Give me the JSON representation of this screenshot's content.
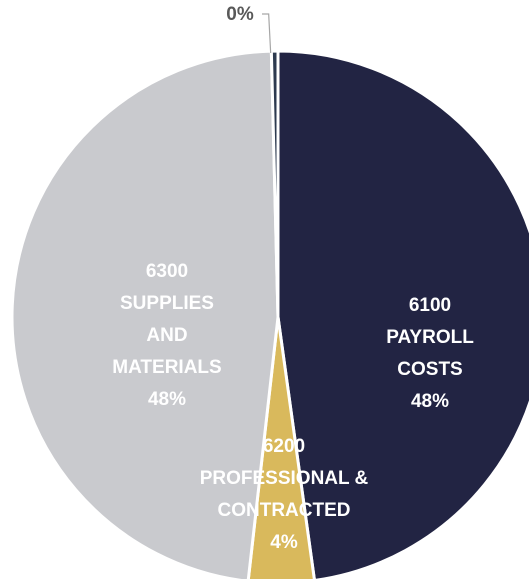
{
  "chart_data": {
    "type": "pie",
    "title": "",
    "slices": [
      {
        "code": "6100",
        "lines": [
          "6100",
          "PAYROLL",
          "COSTS"
        ],
        "percent_label": "48%",
        "value": 48.0,
        "color": "#222443"
      },
      {
        "code": "6200",
        "lines": [
          "6200",
          "PROFESSIONAL &",
          "CONTRACTED"
        ],
        "percent_label": "4%",
        "value": 4.0,
        "color": "#D9B95C"
      },
      {
        "code": "6300",
        "lines": [
          "6300",
          "SUPPLIES",
          "AND",
          "MATERIALS"
        ],
        "percent_label": "48%",
        "value": 48.0,
        "color": "#C9CACE"
      },
      {
        "code": "",
        "lines": [],
        "percent_label": "0%",
        "value": 0.4,
        "color": "#2D3A4F"
      }
    ],
    "label_colors": {
      "on_dark": "#FFFFFF",
      "outside": "#595959"
    }
  }
}
